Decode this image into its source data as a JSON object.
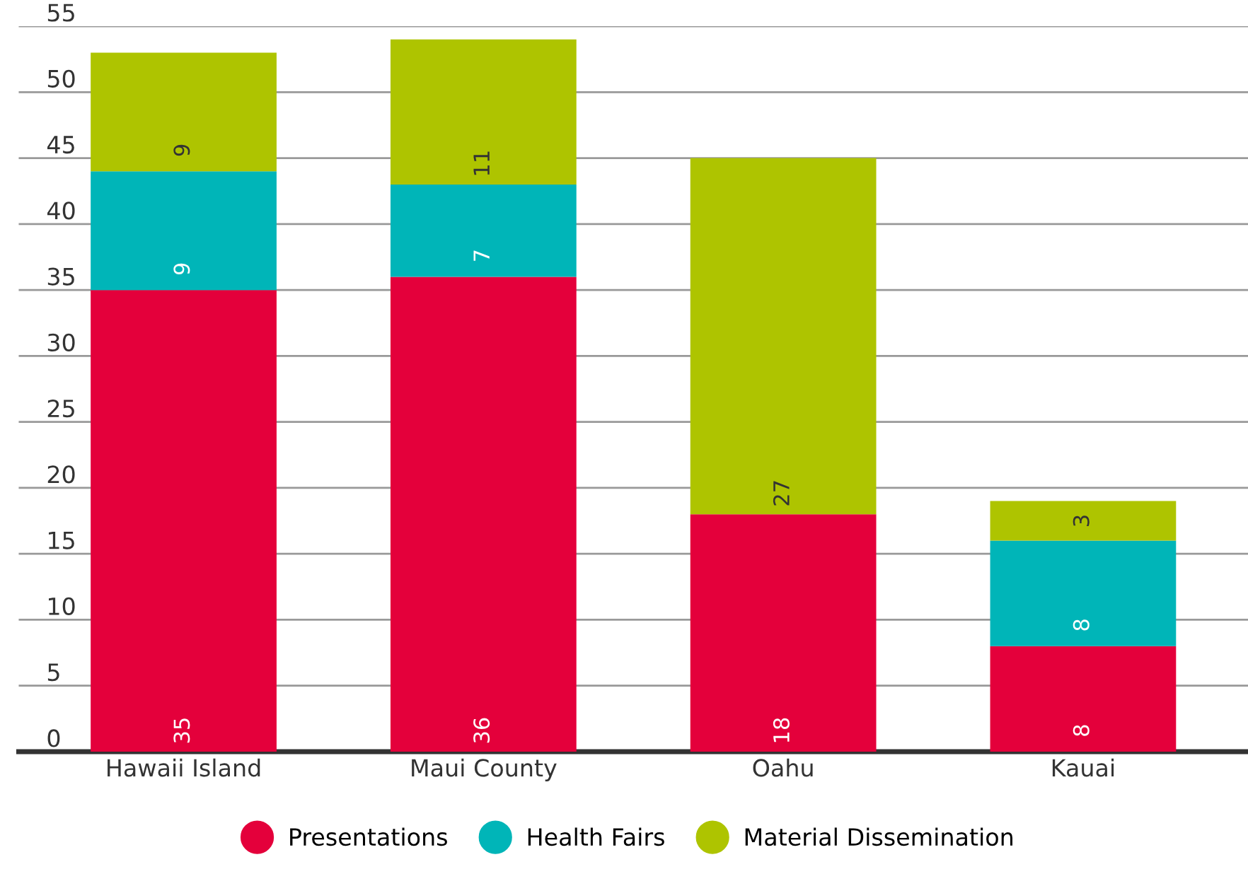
{
  "chart_data": {
    "type": "bar",
    "stacked": true,
    "categories": [
      "Hawaii Island",
      "Maui County",
      "Oahu",
      "Kauai"
    ],
    "series": [
      {
        "name": "Presentations",
        "color": "#e4003b",
        "values": [
          35,
          36,
          18,
          8
        ]
      },
      {
        "name": "Health Fairs",
        "color": "#00b5b8",
        "values": [
          9,
          7,
          null,
          8
        ]
      },
      {
        "name": "Material Dissemination",
        "color": "#aec400",
        "values": [
          9,
          11,
          27,
          3
        ]
      }
    ],
    "ylim": [
      0,
      55
    ],
    "yticks": [
      0,
      5,
      10,
      15,
      20,
      25,
      30,
      35,
      40,
      45,
      50,
      55
    ],
    "grid": "y",
    "legend": "bottom",
    "marker": "circle",
    "data_labels": true
  }
}
